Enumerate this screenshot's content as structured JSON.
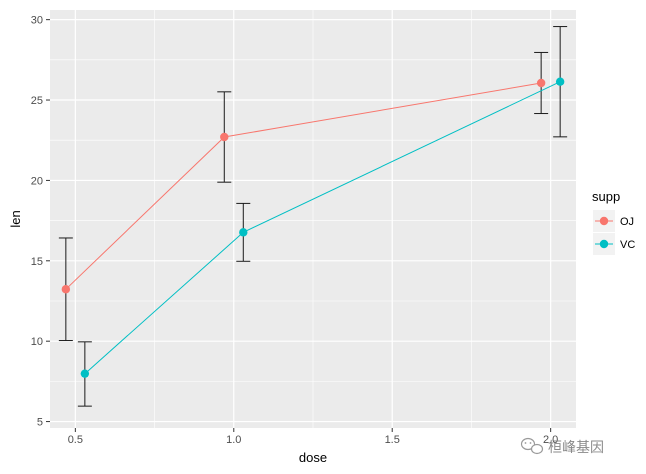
{
  "chart_data": {
    "type": "line",
    "xlabel": "dose",
    "ylabel": "len",
    "xlim": [
      0.42,
      2.08
    ],
    "ylim": [
      4.6,
      30.6
    ],
    "x_ticks": [
      0.5,
      1.0,
      1.5,
      2.0
    ],
    "x_tick_labels": [
      "0.5",
      "1.0",
      "1.5",
      "2.0"
    ],
    "y_ticks": [
      5,
      10,
      15,
      20,
      25,
      30
    ],
    "y_tick_labels": [
      "5",
      "10",
      "15",
      "20",
      "25",
      "30"
    ],
    "grid": true,
    "panel_background": "#ebebeb",
    "grid_color": "#ffffff",
    "legend": {
      "title": "supp",
      "placement": "right"
    },
    "series": [
      {
        "name": "OJ",
        "color": "#f8766d",
        "x": [
          0.47,
          0.97,
          1.97
        ],
        "y": [
          13.23,
          22.7,
          26.06
        ],
        "error_low": [
          10.04,
          19.89,
          24.16
        ],
        "error_high": [
          16.42,
          25.51,
          27.96
        ]
      },
      {
        "name": "VC",
        "color": "#00bfc4",
        "x": [
          0.53,
          1.03,
          2.03
        ],
        "y": [
          7.98,
          16.77,
          26.14
        ],
        "error_low": [
          5.96,
          14.97,
          22.71
        ],
        "error_high": [
          9.96,
          18.57,
          29.57
        ]
      }
    ]
  },
  "watermark": {
    "text": "桓峰基因",
    "icon": "wechat-icon"
  }
}
